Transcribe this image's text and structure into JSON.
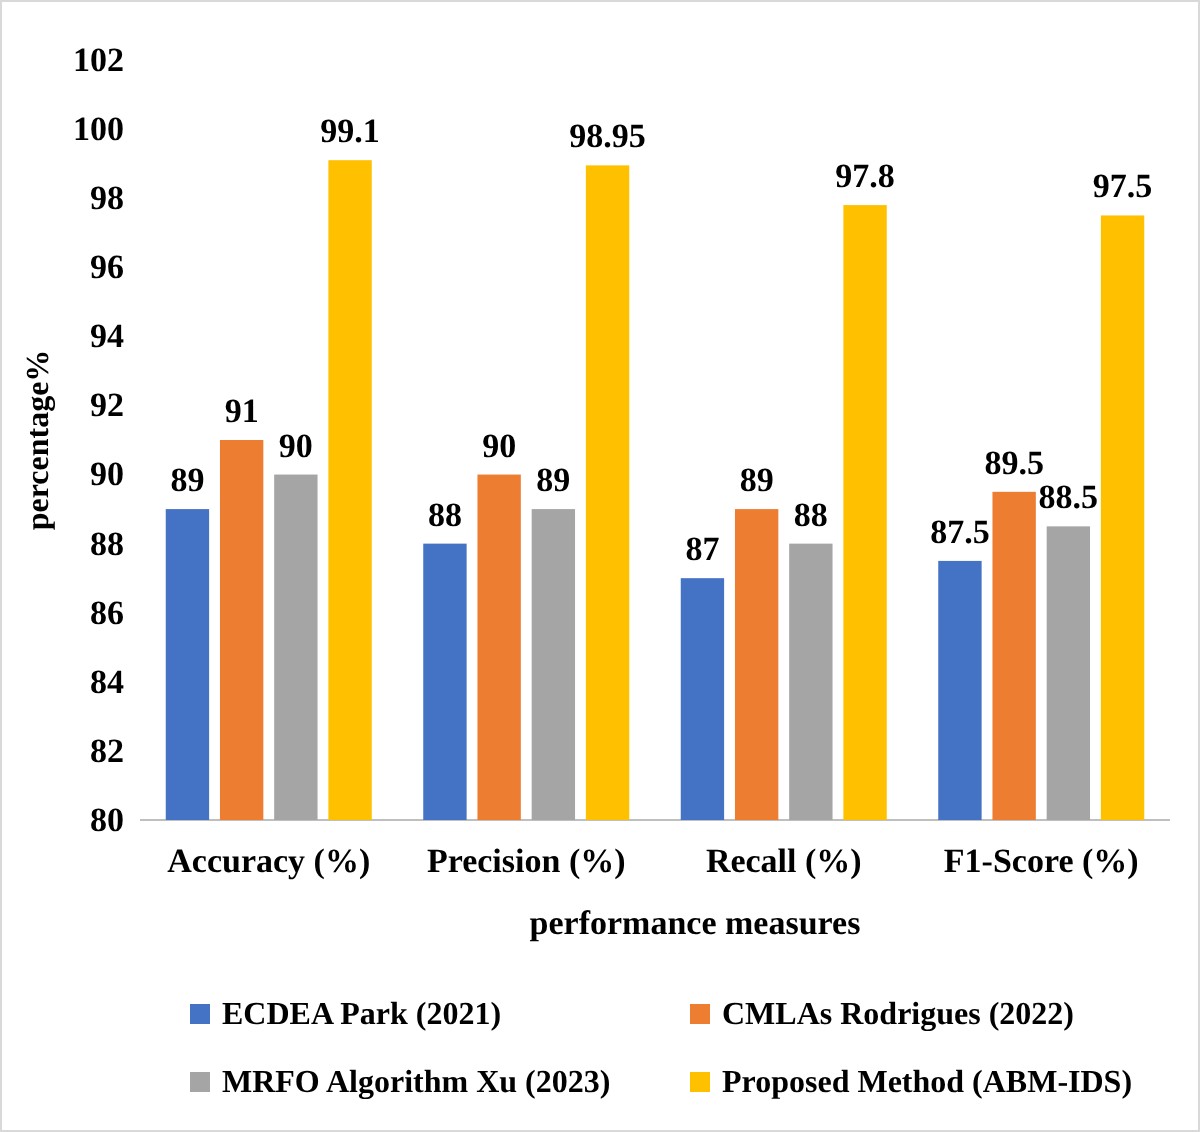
{
  "chart_data": {
    "type": "bar",
    "xlabel": "performance measures",
    "ylabel": "percentage%",
    "categories": [
      "Accuracy (%)",
      "Precision (%)",
      "Recall (%)",
      "F1-Score (%)"
    ],
    "series": [
      {
        "name": "ECDEA Park (2021)",
        "color": "#4472c4",
        "values": [
          89,
          88,
          87,
          87.5
        ]
      },
      {
        "name": "CMLAs Rodrigues (2022)",
        "color": "#ed7d31",
        "values": [
          91,
          90,
          89,
          89.5
        ]
      },
      {
        "name": "MRFO Algorithm Xu (2023)",
        "color": "#a5a5a5",
        "values": [
          90,
          89,
          88,
          88.5
        ]
      },
      {
        "name": "Proposed Method (ABM-IDS)",
        "color": "#ffc000",
        "values": [
          99.1,
          98.95,
          97.8,
          97.5
        ]
      }
    ],
    "ylim": [
      80,
      102
    ],
    "yticks": [
      80,
      82,
      84,
      86,
      88,
      90,
      92,
      94,
      96,
      98,
      100,
      102
    ],
    "grid": false,
    "legend": "bottom",
    "data_labels": true
  }
}
